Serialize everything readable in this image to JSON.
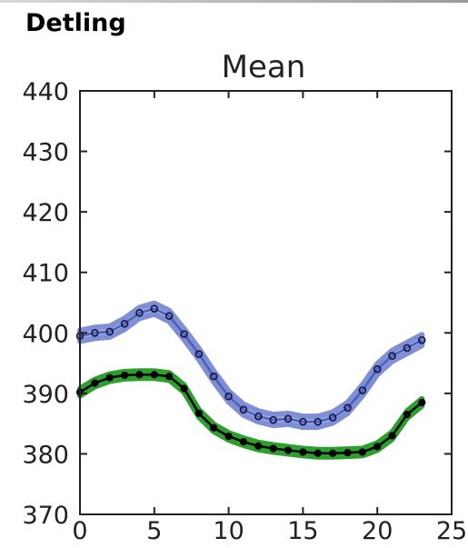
{
  "header": {
    "panel_label": "Detling"
  },
  "chart_data": {
    "type": "line",
    "title": "Mean",
    "xlabel": "",
    "ylabel": "",
    "xlim": [
      0,
      25
    ],
    "ylim": [
      370,
      440
    ],
    "xticks": [
      0,
      5,
      10,
      15,
      20,
      25
    ],
    "yticks": [
      370,
      380,
      390,
      400,
      410,
      420,
      430,
      440
    ],
    "grid": false,
    "x": [
      0,
      1,
      2,
      3,
      4,
      5,
      6,
      7,
      8,
      9,
      10,
      11,
      12,
      13,
      14,
      15,
      16,
      17,
      18,
      19,
      20,
      21,
      22,
      23
    ],
    "series": [
      {
        "color": "#4a5fb8",
        "band_color": "#7f8fd6",
        "marker": "open-circle",
        "values": [
          399.5,
          400.0,
          400.2,
          401.5,
          403.3,
          404.0,
          402.8,
          399.8,
          396.5,
          392.8,
          389.5,
          387.3,
          386.2,
          385.6,
          385.8,
          385.3,
          385.3,
          386.0,
          387.6,
          390.5,
          394.0,
          396.2,
          397.5,
          398.8
        ],
        "band": 0.9
      },
      {
        "color": "#000000",
        "band_color": "#2ca02c",
        "marker": "filled-circle",
        "values": [
          390.2,
          391.7,
          392.6,
          393.0,
          393.1,
          393.1,
          392.8,
          390.8,
          386.7,
          384.3,
          382.9,
          382.0,
          381.3,
          380.9,
          380.6,
          380.3,
          380.1,
          380.1,
          380.2,
          380.3,
          381.2,
          383.0,
          386.5,
          388.5
        ],
        "band": 0.6
      }
    ]
  }
}
